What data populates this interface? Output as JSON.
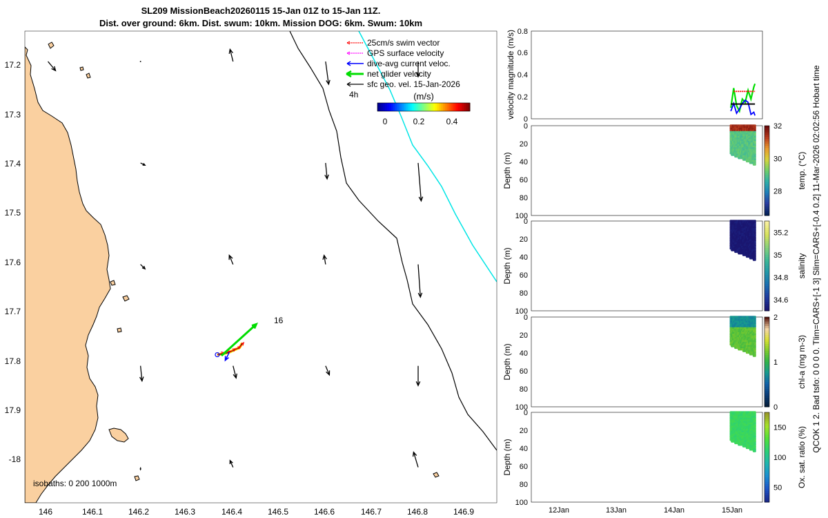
{
  "title": {
    "line1": "SL209 MissionBeach20260115 15-Jan 01Z to 15-Jan 11Z.",
    "line2": "Dist. over ground: 6km. Dist. swum: 10km. Mission DOG: 6km. Swum: 10km"
  },
  "side_caption": "QCOK 1  2. Bad tsfo: 0  0  0  0. Tlim=CARS+[-1 3] Slim=CARS+[-0.4 0.2] 11-Mar-2026 02:02:56 Hobart time",
  "colors": {
    "land": "#FAD0A0",
    "gps": "#FF00FF",
    "swim": "#FF0000",
    "dive_current": "#0000FF",
    "net_velocity": "#00DD00",
    "geostrophic": "#000000",
    "isobath_cyan": "#00E5E5"
  },
  "colormaps": {
    "jet": [
      "#00008F",
      "#0000FF",
      "#0080FF",
      "#00FFFF",
      "#80FF80",
      "#FFFF00",
      "#FF8000",
      "#FF0000",
      "#800000"
    ],
    "thermal": [
      "#04235A",
      "#2A3DA0",
      "#1E7FB8",
      "#2FB0A8",
      "#6FCF6A",
      "#D6D43C",
      "#E89A2E",
      "#B83A1E",
      "#6B0A0A"
    ],
    "haline": [
      "#1A1670",
      "#1E3BA0",
      "#1A6FB0",
      "#2298A8",
      "#3FBA95",
      "#8AD27A",
      "#D8E25C",
      "#F9F1A0"
    ],
    "algae": [
      "#051E3C",
      "#0B3E78",
      "#1162A8",
      "#179A8F",
      "#2FB44A",
      "#7CCB2E",
      "#D7E033",
      "#F6D6A8",
      "#5A1A12"
    ],
    "oxygen": [
      "#1B2A8C",
      "#1C55C7",
      "#1B8FD0",
      "#1FB6B0",
      "#2BD075",
      "#52E03A",
      "#A6E22A",
      "#9A9A2A"
    ]
  },
  "chart_data": [
    {
      "type": "map",
      "name": "glider_track_map",
      "x_ticks": [
        "146",
        "146.1",
        "146.2",
        "146.3",
        "146.4",
        "146.5",
        "146.6",
        "146.7",
        "146.8",
        "146.9"
      ],
      "y_ticks": [
        "17.2",
        "17.3",
        "17.4",
        "17.5",
        "17.6",
        "17.7",
        "17.8",
        "17.9",
        "-18"
      ],
      "xlim": [
        145.95,
        146.97
      ],
      "ylim": [
        -18.07,
        -17.14
      ],
      "isobaths_label": "isobaths: 0   200  1000m",
      "label_start": "4h",
      "label_end": "16",
      "legend": [
        {
          "label": "25cm/s swim vector",
          "color_key": "swim",
          "style": "dotted"
        },
        {
          "label": "GPS surface velocity",
          "color_key": "gps",
          "style": "dotted"
        },
        {
          "label": "dive-avg current veloc.",
          "color_key": "dive_current",
          "style": "solid"
        },
        {
          "label": "net glider velocity",
          "color_key": "net_velocity",
          "style": "thick"
        },
        {
          "label": "sfc geo. vel. 15-Jan-2026",
          "color_key": "geostrophic",
          "style": "solid"
        }
      ],
      "colorbar": {
        "label": "(m/s)",
        "ticks": [
          "0",
          "0.2",
          "0.4"
        ],
        "range": [
          -0.1,
          0.5
        ]
      },
      "geostrophic_vectors": [
        {
          "lon": 146.0,
          "lat": -17.2,
          "u": 0.01,
          "v": -0.012
        },
        {
          "lon": 146.2,
          "lat": -17.2,
          "u": 0.0,
          "v": 0.0
        },
        {
          "lon": 146.4,
          "lat": -17.2,
          "u": -0.004,
          "v": 0.016
        },
        {
          "lon": 146.6,
          "lat": -17.2,
          "u": 0.004,
          "v": -0.03
        },
        {
          "lon": 146.8,
          "lat": -17.2,
          "u": 0.0,
          "v": -0.02
        },
        {
          "lon": 146.2,
          "lat": -17.4,
          "u": 0.006,
          "v": -0.003
        },
        {
          "lon": 146.6,
          "lat": -17.4,
          "u": 0.002,
          "v": -0.021
        },
        {
          "lon": 146.8,
          "lat": -17.4,
          "u": 0.004,
          "v": -0.05
        },
        {
          "lon": 146.2,
          "lat": -17.6,
          "u": 0.006,
          "v": -0.006
        },
        {
          "lon": 146.4,
          "lat": -17.6,
          "u": -0.005,
          "v": 0.012
        },
        {
          "lon": 146.6,
          "lat": -17.6,
          "u": -0.002,
          "v": 0.012
        },
        {
          "lon": 146.8,
          "lat": -17.6,
          "u": 0.003,
          "v": -0.043
        },
        {
          "lon": 146.2,
          "lat": -17.8,
          "u": 0.002,
          "v": -0.02
        },
        {
          "lon": 146.4,
          "lat": -17.8,
          "u": 0.004,
          "v": -0.016
        },
        {
          "lon": 146.6,
          "lat": -17.8,
          "u": 0.005,
          "v": -0.012
        },
        {
          "lon": 146.8,
          "lat": -17.8,
          "u": 0.0,
          "v": -0.026
        },
        {
          "lon": 146.2,
          "lat": -18.0,
          "u": 0.0,
          "v": -0.003
        },
        {
          "lon": 146.4,
          "lat": -18.0,
          "u": -0.004,
          "v": 0.009
        },
        {
          "lon": 146.8,
          "lat": -18.0,
          "u": -0.006,
          "v": 0.02
        }
      ],
      "glider_track": [
        {
          "lon": 146.366,
          "lat": -17.778
        },
        {
          "lon": 146.38,
          "lat": -17.776
        },
        {
          "lon": 146.392,
          "lat": -17.773
        },
        {
          "lon": 146.404,
          "lat": -17.768
        },
        {
          "lon": 146.414,
          "lat": -17.764
        },
        {
          "lon": 146.42,
          "lat": -17.755
        }
      ],
      "net_velocity_vector": {
        "from": [
          146.375,
          -17.78
        ],
        "to": [
          146.45,
          -17.718
        ]
      }
    },
    {
      "type": "line",
      "name": "velocity_magnitude_timeseries",
      "ylabel": "velocity magnitude (m/s)",
      "y_ticks": [
        "0",
        "0.2",
        "0.4",
        "0.6",
        "0.8"
      ],
      "ylim": [
        0,
        0.8
      ],
      "x_ticks": [
        "12Jan",
        "13Jan",
        "14Jan",
        "15Jan"
      ],
      "series": [
        {
          "color_key": "net_velocity",
          "x": [
            15.0,
            15.05,
            15.1,
            15.15,
            15.2,
            15.25,
            15.3,
            15.35,
            15.4,
            15.42
          ],
          "values": [
            0.1,
            0.28,
            0.12,
            0.07,
            0.18,
            0.15,
            0.26,
            0.18,
            0.29,
            0.32
          ]
        },
        {
          "color_key": "dive_current",
          "x": [
            15.0,
            15.05,
            15.1,
            15.15,
            15.2,
            15.25,
            15.3,
            15.35,
            15.4,
            15.42
          ],
          "values": [
            0.07,
            0.14,
            0.05,
            0.09,
            0.14,
            0.17,
            0.15,
            0.04,
            0.06,
            0.03
          ]
        },
        {
          "color_key": "geostrophic",
          "x": [
            15.0,
            15.42
          ],
          "values": [
            0.135,
            0.135
          ]
        },
        {
          "color_key": "swim",
          "x": [
            15.05,
            15.1,
            15.15,
            15.2,
            15.25,
            15.3,
            15.35,
            15.4,
            15.42
          ],
          "values": [
            0.25,
            0.25,
            0.25,
            0.25,
            0.25,
            0.25,
            0.25,
            0.25,
            0.25
          ]
        }
      ]
    },
    {
      "type": "scatter",
      "name": "temperature_section",
      "ylabel": "Depth (m)",
      "clabel": "temp. (°C)",
      "y_ticks": [
        "0",
        "20",
        "40",
        "60",
        "80",
        "100"
      ],
      "c_ticks": [
        "32",
        "30",
        "28"
      ],
      "c_range": [
        26.5,
        32
      ],
      "x_range_days": [
        15.0,
        15.42
      ],
      "max_depth_m": [
        32,
        44
      ],
      "surface_value": 31.5,
      "surface_layer_m": 6,
      "deep_value": 29.0,
      "colormap": "thermal"
    },
    {
      "type": "scatter",
      "name": "salinity_section",
      "ylabel": "Depth (m)",
      "clabel": "salinity",
      "y_ticks": [
        "0",
        "20",
        "40",
        "60",
        "80",
        "100"
      ],
      "c_ticks": [
        "35.2",
        "35",
        "34.8",
        "34.6"
      ],
      "c_range": [
        34.5,
        35.3
      ],
      "x_range_days": [
        15.0,
        15.42
      ],
      "max_depth_m": [
        32,
        44
      ],
      "surface_value": 34.5,
      "surface_layer_m": 0,
      "deep_value": 34.5,
      "colormap": "haline"
    },
    {
      "type": "scatter",
      "name": "chlorophyll_section",
      "ylabel": "Depth (m)",
      "clabel": "chl-a (mg m-3)",
      "y_ticks": [
        "0",
        "20",
        "40",
        "60",
        "80",
        "100"
      ],
      "c_ticks": [
        "2",
        "1",
        "0"
      ],
      "c_range": [
        0,
        2
      ],
      "x_range_days": [
        15.0,
        15.42
      ],
      "max_depth_m": [
        32,
        44
      ],
      "surface_value": 0.7,
      "surface_layer_m": 12,
      "deep_value": 1.15,
      "colormap": "algae"
    },
    {
      "type": "scatter",
      "name": "oxygen_section",
      "ylabel": "Depth (m)",
      "clabel": "Ox. sat. ratio (%)",
      "y_ticks": [
        "0",
        "20",
        "40",
        "60",
        "80",
        "100"
      ],
      "c_ticks": [
        "150",
        "100",
        "50"
      ],
      "c_range": [
        25,
        175
      ],
      "x_range_days": [
        15.0,
        15.42
      ],
      "max_depth_m": [
        32,
        44
      ],
      "surface_value": 118,
      "surface_layer_m": 0,
      "deep_value": 118,
      "colormap": "oxygen"
    }
  ]
}
